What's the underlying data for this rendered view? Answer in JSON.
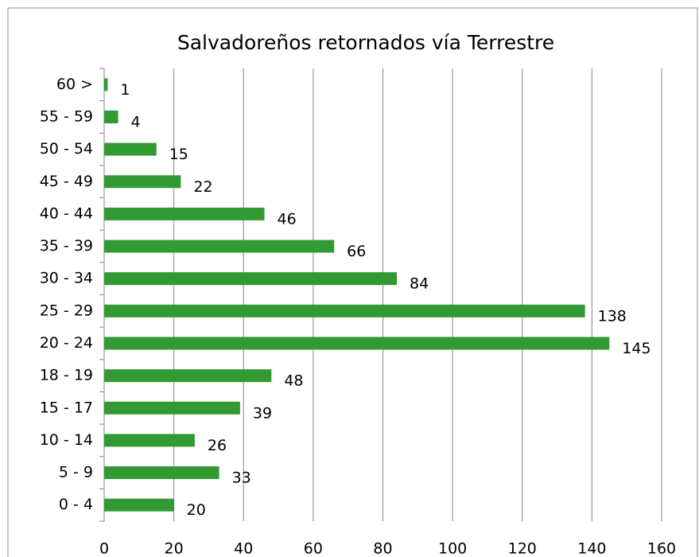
{
  "chart_data": {
    "type": "bar",
    "orientation": "horizontal",
    "title": "Salvadoreños retornados vía Terrestre",
    "categories": [
      "0 - 4",
      "5 - 9",
      "10 - 14",
      "15 - 17",
      "18 - 19",
      "20 - 24",
      "25 - 29",
      "30 - 34",
      "35 - 39",
      "40 - 44",
      "45 - 49",
      "50 - 54",
      "55 - 59",
      "60 >"
    ],
    "values": [
      20,
      33,
      26,
      39,
      48,
      145,
      138,
      84,
      66,
      46,
      22,
      15,
      4,
      1
    ],
    "color": "#339933",
    "xlim": [
      0,
      160
    ],
    "xticks": [
      0,
      20,
      40,
      60,
      80,
      100,
      120,
      140,
      160
    ],
    "grid": true
  }
}
